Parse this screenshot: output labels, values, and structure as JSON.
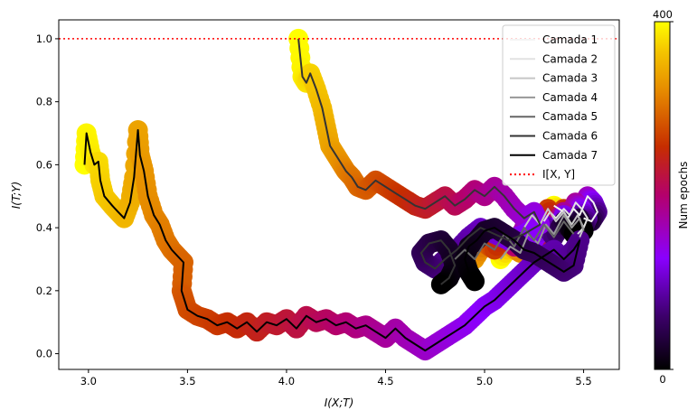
{
  "chart_data": {
    "type": "line",
    "xlabel": "I(X;T)",
    "ylabel": "I(T;Y)",
    "xlim": [
      2.85,
      5.68
    ],
    "ylim": [
      -0.05,
      1.06
    ],
    "xticks": [
      "3.0",
      "3.5",
      "4.0",
      "4.5",
      "5.0",
      "5.5"
    ],
    "yticks": [
      "0.0",
      "0.2",
      "0.4",
      "0.6",
      "0.8",
      "1.0"
    ],
    "grid": false,
    "legend_position": "top-right",
    "reference_line": {
      "name": "I[X, Y]",
      "y": 1.0,
      "style": "dotted",
      "color": "#ff0000"
    },
    "colorbar": {
      "label": "Num epochs",
      "min_label": "0",
      "max_label": "400",
      "colormap": "gnuplot"
    },
    "series": [
      {
        "name": "Camada 1",
        "color": "#f4f4f4",
        "points": [
          [
            5.35,
            0.47
          ],
          [
            5.4,
            0.45
          ],
          [
            5.42,
            0.43
          ],
          [
            5.45,
            0.46
          ],
          [
            5.48,
            0.44
          ],
          [
            5.5,
            0.47
          ],
          [
            5.52,
            0.5
          ],
          [
            5.55,
            0.48
          ],
          [
            5.57,
            0.45
          ],
          [
            5.54,
            0.42
          ],
          [
            5.5,
            0.43
          ]
        ]
      },
      {
        "name": "Camada 2",
        "color": "#e2e2e2",
        "points": [
          [
            5.3,
            0.42
          ],
          [
            5.33,
            0.45
          ],
          [
            5.36,
            0.43
          ],
          [
            5.4,
            0.46
          ],
          [
            5.43,
            0.44
          ],
          [
            5.46,
            0.48
          ],
          [
            5.49,
            0.46
          ],
          [
            5.52,
            0.43
          ],
          [
            5.5,
            0.4
          ],
          [
            5.47,
            0.38
          ]
        ]
      },
      {
        "name": "Camada 3",
        "color": "#c6c6c6",
        "points": [
          [
            5.2,
            0.4
          ],
          [
            5.24,
            0.44
          ],
          [
            5.28,
            0.41
          ],
          [
            5.32,
            0.46
          ],
          [
            5.36,
            0.42
          ],
          [
            5.4,
            0.45
          ],
          [
            5.44,
            0.41
          ],
          [
            5.47,
            0.44
          ],
          [
            5.5,
            0.4
          ],
          [
            5.48,
            0.37
          ]
        ]
      },
      {
        "name": "Camada 4",
        "color": "#979797",
        "points": [
          [
            5.08,
            0.3
          ],
          [
            5.13,
            0.34
          ],
          [
            5.18,
            0.32
          ],
          [
            5.22,
            0.38
          ],
          [
            5.27,
            0.35
          ],
          [
            5.31,
            0.41
          ],
          [
            5.35,
            0.38
          ],
          [
            5.4,
            0.44
          ],
          [
            5.44,
            0.4
          ],
          [
            5.48,
            0.43
          ],
          [
            5.5,
            0.39
          ]
        ]
      },
      {
        "name": "Camada 5",
        "color": "#666666",
        "points": [
          [
            4.85,
            0.3
          ],
          [
            4.9,
            0.33
          ],
          [
            4.95,
            0.3
          ],
          [
            5.0,
            0.35
          ],
          [
            5.05,
            0.33
          ],
          [
            5.1,
            0.38
          ],
          [
            5.15,
            0.34
          ],
          [
            5.2,
            0.4
          ],
          [
            5.25,
            0.36
          ],
          [
            5.3,
            0.41
          ],
          [
            5.35,
            0.37
          ],
          [
            5.4,
            0.42
          ],
          [
            5.45,
            0.38
          ]
        ]
      },
      {
        "name": "Camada 6",
        "color": "#333333",
        "points": [
          [
            4.06,
            1.0
          ],
          [
            4.08,
            0.88
          ],
          [
            4.1,
            0.86
          ],
          [
            4.12,
            0.89
          ],
          [
            4.15,
            0.84
          ],
          [
            4.18,
            0.78
          ],
          [
            4.2,
            0.72
          ],
          [
            4.22,
            0.66
          ],
          [
            4.25,
            0.63
          ],
          [
            4.28,
            0.6
          ],
          [
            4.3,
            0.58
          ],
          [
            4.33,
            0.56
          ],
          [
            4.36,
            0.53
          ],
          [
            4.4,
            0.52
          ],
          [
            4.45,
            0.55
          ],
          [
            4.5,
            0.53
          ],
          [
            4.55,
            0.51
          ],
          [
            4.6,
            0.49
          ],
          [
            4.65,
            0.47
          ],
          [
            4.7,
            0.46
          ],
          [
            4.75,
            0.48
          ],
          [
            4.8,
            0.5
          ],
          [
            4.85,
            0.47
          ],
          [
            4.9,
            0.49
          ],
          [
            4.95,
            0.52
          ],
          [
            5.0,
            0.5
          ],
          [
            5.05,
            0.53
          ],
          [
            5.1,
            0.5
          ],
          [
            5.15,
            0.46
          ],
          [
            5.2,
            0.43
          ],
          [
            5.25,
            0.45
          ],
          [
            5.28,
            0.41
          ],
          [
            5.2,
            0.38
          ],
          [
            5.12,
            0.36
          ],
          [
            5.05,
            0.38
          ],
          [
            4.98,
            0.4
          ],
          [
            4.92,
            0.37
          ],
          [
            4.86,
            0.33
          ],
          [
            4.8,
            0.3
          ],
          [
            4.75,
            0.27
          ],
          [
            4.7,
            0.29
          ],
          [
            4.68,
            0.32
          ],
          [
            4.72,
            0.35
          ],
          [
            4.78,
            0.36
          ],
          [
            4.82,
            0.33
          ],
          [
            4.85,
            0.28
          ],
          [
            4.82,
            0.24
          ],
          [
            4.78,
            0.22
          ]
        ]
      },
      {
        "name": "Camada 7",
        "color": "#000000",
        "points": [
          [
            2.98,
            0.6
          ],
          [
            2.99,
            0.7
          ],
          [
            3.01,
            0.64
          ],
          [
            3.03,
            0.6
          ],
          [
            3.05,
            0.61
          ],
          [
            3.06,
            0.55
          ],
          [
            3.08,
            0.5
          ],
          [
            3.12,
            0.47
          ],
          [
            3.15,
            0.45
          ],
          [
            3.18,
            0.43
          ],
          [
            3.21,
            0.48
          ],
          [
            3.23,
            0.56
          ],
          [
            3.25,
            0.71
          ],
          [
            3.26,
            0.63
          ],
          [
            3.28,
            0.58
          ],
          [
            3.3,
            0.5
          ],
          [
            3.33,
            0.44
          ],
          [
            3.36,
            0.41
          ],
          [
            3.39,
            0.36
          ],
          [
            3.42,
            0.33
          ],
          [
            3.45,
            0.31
          ],
          [
            3.48,
            0.29
          ],
          [
            3.47,
            0.2
          ],
          [
            3.48,
            0.18
          ],
          [
            3.5,
            0.14
          ],
          [
            3.55,
            0.12
          ],
          [
            3.6,
            0.11
          ],
          [
            3.65,
            0.09
          ],
          [
            3.7,
            0.1
          ],
          [
            3.75,
            0.08
          ],
          [
            3.8,
            0.1
          ],
          [
            3.85,
            0.07
          ],
          [
            3.9,
            0.1
          ],
          [
            3.95,
            0.09
          ],
          [
            4.0,
            0.11
          ],
          [
            4.05,
            0.08
          ],
          [
            4.1,
            0.12
          ],
          [
            4.15,
            0.1
          ],
          [
            4.2,
            0.11
          ],
          [
            4.25,
            0.09
          ],
          [
            4.3,
            0.1
          ],
          [
            4.35,
            0.08
          ],
          [
            4.4,
            0.09
          ],
          [
            4.45,
            0.07
          ],
          [
            4.5,
            0.05
          ],
          [
            4.55,
            0.08
          ],
          [
            4.6,
            0.05
          ],
          [
            4.65,
            0.03
          ],
          [
            4.7,
            0.01
          ],
          [
            4.75,
            0.03
          ],
          [
            4.8,
            0.05
          ],
          [
            4.85,
            0.07
          ],
          [
            4.9,
            0.09
          ],
          [
            4.95,
            0.12
          ],
          [
            5.0,
            0.15
          ],
          [
            5.05,
            0.17
          ],
          [
            5.1,
            0.2
          ],
          [
            5.15,
            0.23
          ],
          [
            5.2,
            0.26
          ],
          [
            5.25,
            0.29
          ],
          [
            5.3,
            0.31
          ],
          [
            5.35,
            0.33
          ],
          [
            5.4,
            0.3
          ],
          [
            5.45,
            0.33
          ],
          [
            5.48,
            0.36
          ],
          [
            5.45,
            0.28
          ],
          [
            5.4,
            0.26
          ],
          [
            5.35,
            0.28
          ],
          [
            5.3,
            0.3
          ],
          [
            5.25,
            0.32
          ],
          [
            5.2,
            0.33
          ],
          [
            5.15,
            0.36
          ],
          [
            5.1,
            0.38
          ],
          [
            5.05,
            0.4
          ],
          [
            5.0,
            0.39
          ],
          [
            4.96,
            0.36
          ],
          [
            4.92,
            0.34
          ],
          [
            4.9,
            0.3
          ],
          [
            4.92,
            0.26
          ],
          [
            4.95,
            0.23
          ]
        ]
      }
    ]
  }
}
